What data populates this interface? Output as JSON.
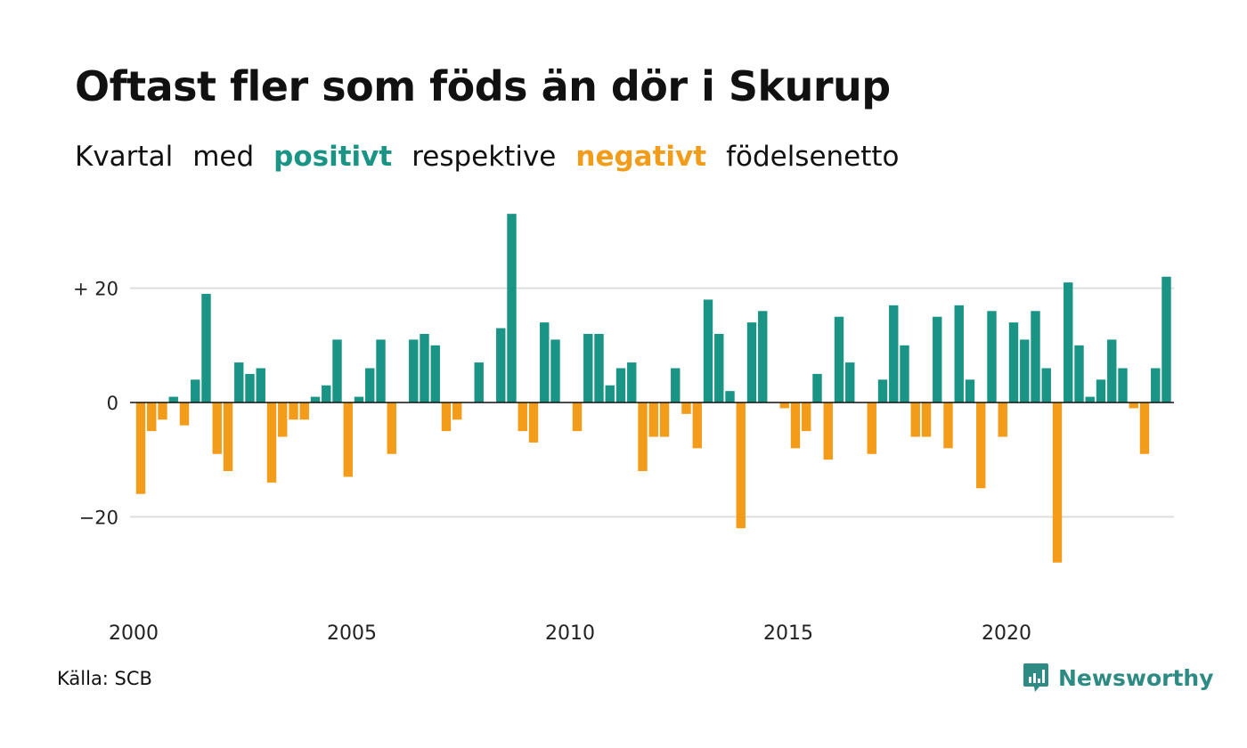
{
  "title": "Oftast fler som föds än dör i Skurup",
  "subtitle": {
    "w1": "Kvartal",
    "w2": "med",
    "positive": "positivt",
    "w3": "respektive",
    "negative": "negativt",
    "w4": "födelsenetto"
  },
  "source": "Källa: SCB",
  "brand": "Newsworthy",
  "colors": {
    "positive": "#1a9485",
    "negative": "#f39c1a",
    "grid": "#dddddd",
    "axis": "#111111"
  },
  "chart_data": {
    "type": "bar",
    "x_start": 2000,
    "periods_per_year": 4,
    "values": [
      -16,
      -5,
      -3,
      1,
      -4,
      4,
      19,
      -9,
      -12,
      7,
      5,
      6,
      -14,
      -6,
      -3,
      -3,
      1,
      3,
      11,
      -13,
      1,
      6,
      11,
      -9,
      0,
      11,
      12,
      10,
      -5,
      -3,
      0,
      7,
      0,
      13,
      33,
      -5,
      -7,
      14,
      11,
      0,
      -5,
      12,
      12,
      3,
      6,
      7,
      -12,
      -6,
      -6,
      6,
      -2,
      -8,
      18,
      12,
      2,
      -22,
      14,
      16,
      0,
      -1,
      -8,
      -5,
      5,
      -10,
      15,
      7,
      0,
      -9,
      4,
      17,
      10,
      -6,
      -6,
      15,
      -8,
      17,
      4,
      -15,
      16,
      -6,
      14,
      11,
      16,
      6,
      -28,
      21,
      10,
      1,
      4,
      11,
      6,
      -1,
      -9,
      6,
      22
    ],
    "y_ticks": [
      20,
      0,
      -20
    ],
    "y_tick_labels": [
      "+ 20",
      "0",
      "−20"
    ],
    "x_ticks": [
      "2000",
      "2005",
      "2010",
      "2015",
      "2020"
    ],
    "ylim": [
      -30,
      35
    ],
    "grid": true,
    "legend": "none"
  }
}
